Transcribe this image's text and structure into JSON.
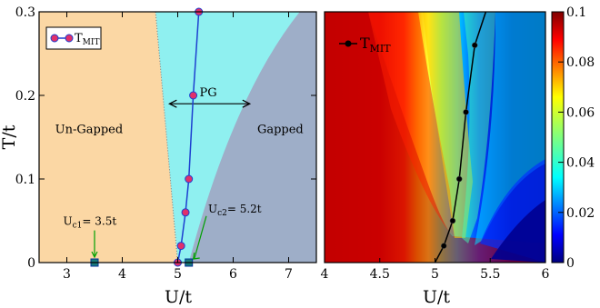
{
  "chart_data": [
    {
      "type": "area",
      "xlabel": "U/t",
      "ylabel": "T/t",
      "xlim": [
        2.5,
        7.5
      ],
      "ylim": [
        0,
        0.3
      ],
      "x_ticks": [
        3,
        4,
        5,
        6,
        7
      ],
      "y_ticks": [
        0,
        0.1,
        0.2,
        0.3
      ],
      "x_tick_labels": [
        "3",
        "4",
        "5",
        "6",
        "7"
      ],
      "y_tick_labels": [
        "0",
        "0.1",
        "0.2",
        "0.3"
      ],
      "regions": [
        {
          "label": "Un-Gapped",
          "color": "#fbd7a4",
          "label_at": [
            3.4,
            0.155
          ],
          "boundary_x_at_T0": 5.0,
          "boundary_x_at_Tmax": 4.6
        },
        {
          "label": "PG",
          "color": "#8ff0f0",
          "label_at": [
            5.55,
            0.199
          ]
        },
        {
          "label": "Gapped",
          "color": "#9eaec8",
          "label_at": [
            6.85,
            0.155
          ],
          "boundary_x_at_T0": 5.2,
          "boundary_x_at_Tmax": 7.5
        }
      ],
      "pg_arrow": {
        "x_from": 4.85,
        "x_to": 6.3,
        "y": 0.19
      },
      "annotations": [
        {
          "text_main": "U",
          "text_sub": "c1",
          "text_rest": "= 3.5t",
          "x": 3.5,
          "y": 0,
          "text_at": [
            3.0,
            0.045
          ]
        },
        {
          "text_main": "U",
          "text_sub": "c2",
          "text_rest": "= 5.2t",
          "x": 5.2,
          "y": 0,
          "text_at": [
            5.45,
            0.06
          ]
        }
      ],
      "series": [
        {
          "name_main": "T",
          "name_sub": "MIT",
          "color": "#1d3fd0",
          "marker_color": "#e0306a",
          "x": [
            5.0,
            5.06,
            5.14,
            5.2,
            5.28,
            5.38
          ],
          "y": [
            0.0,
            0.02,
            0.06,
            0.1,
            0.2,
            0.3
          ]
        }
      ],
      "legend": "top-left"
    },
    {
      "type": "heatmap",
      "xlabel": "U/t",
      "ylabel": "",
      "xlim": [
        4,
        6
      ],
      "ylim": [
        0,
        0.3
      ],
      "x_ticks": [
        4,
        4.5,
        5,
        5.5,
        6
      ],
      "x_tick_labels": [
        "4",
        "4.5",
        "5",
        "5.5",
        "6"
      ],
      "colorbar_range": [
        0,
        0.1
      ],
      "colorbar_ticks": [
        0,
        0.02,
        0.04,
        0.06,
        0.08,
        0.1
      ],
      "colorbar_tick_labels": [
        "0",
        "0.02",
        "0.04",
        "0.06",
        "0.08",
        "0.1"
      ],
      "colormap": "jet",
      "series": [
        {
          "name_main": "T",
          "name_sub": "MIT",
          "color": "#000000",
          "x": [
            5.0,
            5.08,
            5.16,
            5.22,
            5.28,
            5.36,
            5.46
          ],
          "y": [
            0.0,
            0.02,
            0.05,
            0.1,
            0.18,
            0.26,
            0.3
          ]
        }
      ],
      "legend": "top-left"
    }
  ]
}
